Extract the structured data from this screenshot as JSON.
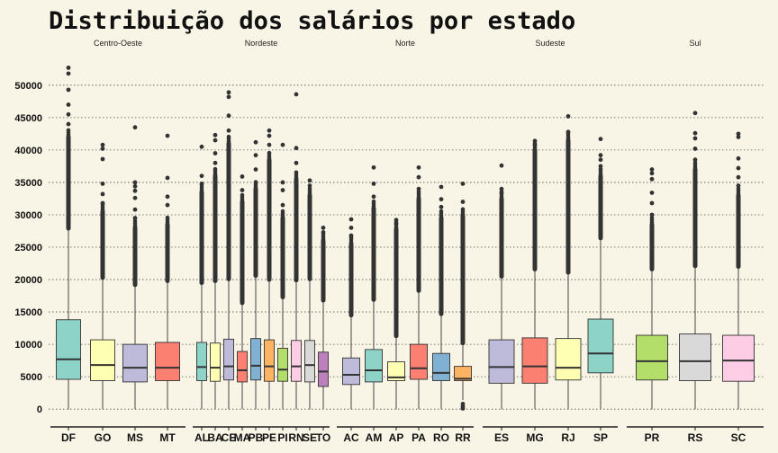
{
  "chart_data": {
    "type": "boxplot",
    "title": "Distribuição dos salários por estado",
    "xlabel": "",
    "ylabel": "",
    "ylim": [
      -1500,
      54000
    ],
    "yticks": [
      0,
      5000,
      10000,
      15000,
      20000,
      25000,
      30000,
      35000,
      40000,
      45000,
      50000
    ],
    "grid": "horizontal-dotted",
    "legend": "none",
    "facets": [
      {
        "name": "Centro-Oeste",
        "states": [
          {
            "label": "DF",
            "color": "#8dd3c7",
            "q1": 4600,
            "median": 7700,
            "q3": 13800,
            "whisker_low": 0,
            "whisker_high": 27800,
            "outlier_start": 27900,
            "outlier_dense_end": 42000,
            "outliers_top": [
              44000,
              45500,
              47000,
              49300,
              51800,
              52700
            ]
          },
          {
            "label": "GO",
            "color": "#ffffb3",
            "q1": 4400,
            "median": 6800,
            "q3": 10700,
            "whisker_low": 0,
            "whisker_high": 20200,
            "outlier_start": 20300,
            "outlier_dense_end": 30500,
            "outliers_top": [
              31800,
              33200,
              34800,
              38600,
              40200,
              40800
            ]
          },
          {
            "label": "MS",
            "color": "#bebada",
            "q1": 4200,
            "median": 6400,
            "q3": 10000,
            "whisker_low": 0,
            "whisker_high": 19100,
            "outlier_start": 19200,
            "outlier_dense_end": 28000,
            "outliers_top": [
              29500,
              30800,
              32600,
              33700,
              34400,
              35000,
              43500
            ]
          },
          {
            "label": "MT",
            "color": "#fb8072",
            "q1": 4400,
            "median": 6400,
            "q3": 10300,
            "whisker_low": 0,
            "whisker_high": 19700,
            "outlier_start": 19800,
            "outlier_dense_end": 28500,
            "outliers_top": [
              31500,
              32800,
              35700,
              42200
            ]
          }
        ]
      },
      {
        "name": "Nordeste",
        "states": [
          {
            "label": "AL",
            "color": "#8dd3c7",
            "q1": 4400,
            "median": 6500,
            "q3": 10300,
            "whisker_low": 0,
            "whisker_high": 19400,
            "outlier_start": 19500,
            "outlier_dense_end": 33500,
            "outliers_top": [
              34800,
              36000,
              40500
            ]
          },
          {
            "label": "BA",
            "color": "#ffffb3",
            "q1": 4300,
            "median": 6400,
            "q3": 10200,
            "whisker_low": 0,
            "whisker_high": 19700,
            "outlier_start": 19800,
            "outlier_dense_end": 36000,
            "outliers_top": [
              38000,
              39500,
              41500,
              42300
            ]
          },
          {
            "label": "CE",
            "color": "#bebada",
            "q1": 4500,
            "median": 6600,
            "q3": 10800,
            "whisker_low": 0,
            "whisker_high": 20000,
            "outlier_start": 20100,
            "outlier_dense_end": 41000,
            "outliers_top": [
              43000,
              45300,
              48200,
              48900
            ]
          },
          {
            "label": "MA",
            "color": "#fb8072",
            "q1": 4200,
            "median": 6000,
            "q3": 8900,
            "whisker_low": 0,
            "whisker_high": 16300,
            "outlier_start": 16400,
            "outlier_dense_end": 32000,
            "outliers_top": [
              33800,
              35900
            ]
          },
          {
            "label": "PB",
            "color": "#80b1d3",
            "q1": 4500,
            "median": 6700,
            "q3": 10900,
            "whisker_low": 0,
            "whisker_high": 20500,
            "outlier_start": 20600,
            "outlier_dense_end": 34000,
            "outliers_top": [
              37000,
              39200,
              41200
            ]
          },
          {
            "label": "PE",
            "color": "#fdb462",
            "q1": 4300,
            "median": 6600,
            "q3": 10700,
            "whisker_low": 0,
            "whisker_high": 19900,
            "outlier_start": 20000,
            "outlier_dense_end": 38500,
            "outliers_top": [
              40800,
              42200,
              43000
            ]
          },
          {
            "label": "PI",
            "color": "#b3de69",
            "q1": 4300,
            "median": 6100,
            "q3": 9400,
            "whisker_low": 0,
            "whisker_high": 17200,
            "outlier_start": 17300,
            "outlier_dense_end": 29500,
            "outliers_top": [
              31500,
              33800,
              35000,
              40800
            ]
          },
          {
            "label": "RN",
            "color": "#fccde5",
            "q1": 4300,
            "median": 6600,
            "q3": 10600,
            "whisker_low": 0,
            "whisker_high": 19800,
            "outlier_start": 19900,
            "outlier_dense_end": 35500,
            "outliers_top": [
              38000,
              40300,
              48600
            ]
          },
          {
            "label": "SE",
            "color": "#d9d9d9",
            "q1": 4200,
            "median": 6800,
            "q3": 10600,
            "whisker_low": 0,
            "whisker_high": 20000,
            "outlier_start": 20100,
            "outlier_dense_end": 33000,
            "outliers_top": [
              34500,
              35300
            ]
          },
          {
            "label": "TO",
            "color": "#bc80bd",
            "q1": 3500,
            "median": 5800,
            "q3": 8800,
            "whisker_low": 0,
            "whisker_high": 16700,
            "outlier_start": 16800,
            "outlier_dense_end": 26000,
            "outliers_top": [
              27300,
              28000
            ]
          }
        ]
      },
      {
        "name": "Norte",
        "states": [
          {
            "label": "AC",
            "color": "#bebada",
            "q1": 3800,
            "median": 5300,
            "q3": 7900,
            "whisker_low": 0,
            "whisker_high": 14400,
            "outlier_start": 14500,
            "outlier_dense_end": 25500,
            "outliers_top": [
              26800,
              28000,
              29300
            ]
          },
          {
            "label": "AM",
            "color": "#8dd3c7",
            "q1": 4200,
            "median": 6000,
            "q3": 9200,
            "whisker_low": 0,
            "whisker_high": 16800,
            "outlier_start": 16900,
            "outlier_dense_end": 31000,
            "outliers_top": [
              32800,
              34800,
              37300
            ]
          },
          {
            "label": "AP",
            "color": "#ffffb3",
            "q1": 4400,
            "median": 4900,
            "q3": 7300,
            "whisker_low": 0,
            "whisker_high": 11200,
            "outlier_start": 11300,
            "outlier_dense_end": 27800,
            "outliers_top": [
              28600,
              29200
            ]
          },
          {
            "label": "PA",
            "color": "#fb8072",
            "q1": 4600,
            "median": 6300,
            "q3": 10000,
            "whisker_low": 0,
            "whisker_high": 18200,
            "outlier_start": 18300,
            "outlier_dense_end": 32500,
            "outliers_top": [
              34000,
              35800,
              37300
            ]
          },
          {
            "label": "RO",
            "color": "#80b1d3",
            "q1": 4400,
            "median": 5600,
            "q3": 8600,
            "whisker_low": 0,
            "whisker_high": 14600,
            "outlier_start": 14700,
            "outlier_dense_end": 29500,
            "outliers_top": [
              31200,
              32400,
              34300
            ]
          },
          {
            "label": "RR",
            "color": "#fdb462",
            "q1": 4400,
            "median": 4700,
            "q3": 6600,
            "whisker_low": 1400,
            "whisker_high": 10100,
            "outlier_start": 10200,
            "outlier_dense_end": 29800,
            "outliers_top": [
              32000,
              34800
            ],
            "outliers_low": [
              100,
              400,
              800
            ]
          }
        ]
      },
      {
        "name": "Sudeste",
        "states": [
          {
            "label": "ES",
            "color": "#bebada",
            "q1": 4000,
            "median": 6500,
            "q3": 10700,
            "whisker_low": 0,
            "whisker_high": 20400,
            "outlier_start": 20500,
            "outlier_dense_end": 32500,
            "outliers_top": [
              33400,
              34000,
              37600
            ]
          },
          {
            "label": "MG",
            "color": "#fb8072",
            "q1": 4000,
            "median": 6600,
            "q3": 11000,
            "whisker_low": 0,
            "whisker_high": 21500,
            "outlier_start": 21600,
            "outlier_dense_end": 40000,
            "outliers_top": [
              40800,
              41400
            ]
          },
          {
            "label": "RJ",
            "color": "#ffffb3",
            "q1": 4500,
            "median": 6400,
            "q3": 10900,
            "whisker_low": 0,
            "whisker_high": 21000,
            "outlier_start": 21100,
            "outlier_dense_end": 41500,
            "outliers_top": [
              42800,
              45200
            ]
          },
          {
            "label": "SP",
            "color": "#8dd3c7",
            "q1": 5600,
            "median": 8600,
            "q3": 13900,
            "whisker_low": 0,
            "whisker_high": 26300,
            "outlier_start": 26400,
            "outlier_dense_end": 36000,
            "outliers_top": [
              37500,
              38500,
              39200,
              41700
            ]
          }
        ]
      },
      {
        "name": "Sul",
        "states": [
          {
            "label": "PR",
            "color": "#b3de69",
            "q1": 4500,
            "median": 7400,
            "q3": 11400,
            "whisker_low": 0,
            "whisker_high": 21500,
            "outlier_start": 21600,
            "outlier_dense_end": 28500,
            "outliers_top": [
              30000,
              31800,
              33400,
              35500,
              36400,
              37000
            ]
          },
          {
            "label": "RS",
            "color": "#d9d9d9",
            "q1": 4400,
            "median": 7400,
            "q3": 11600,
            "whisker_low": 0,
            "whisker_high": 22000,
            "outlier_start": 22100,
            "outlier_dense_end": 37000,
            "outliers_top": [
              38500,
              40200,
              41800,
              42600,
              45700
            ]
          },
          {
            "label": "SC",
            "color": "#fccde5",
            "q1": 4300,
            "median": 7500,
            "q3": 11400,
            "whisker_low": 0,
            "whisker_high": 21900,
            "outlier_start": 22000,
            "outlier_dense_end": 33000,
            "outliers_top": [
              34500,
              35800,
              37200,
              38700,
              42000,
              42500
            ]
          }
        ]
      }
    ]
  }
}
